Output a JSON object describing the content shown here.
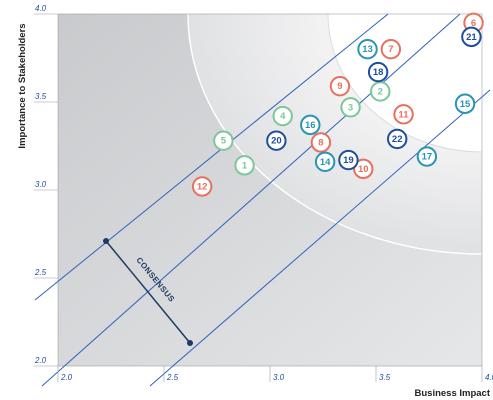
{
  "chart_data": {
    "type": "scatter",
    "title": "",
    "xlabel": "Business Impact",
    "ylabel": "Importance to Stakeholders",
    "xlim": [
      2.0,
      4.0
    ],
    "ylim": [
      2.0,
      4.0
    ],
    "x_ticks": [
      "2.0",
      "2.5",
      "3.0",
      "3.5",
      "4.0"
    ],
    "y_ticks": [
      "2.0",
      "2.5",
      "3.0",
      "3.5",
      "4.0"
    ],
    "grid": false,
    "annotation": "CONSENSUS",
    "category_colors": {
      "red": "#e8705f",
      "green": "#7cc79a",
      "teal": "#2a93b8",
      "navy": "#1e4f9b"
    },
    "points": [
      {
        "label": "1",
        "x": 2.88,
        "y": 3.14,
        "color": "green"
      },
      {
        "label": "2",
        "x": 3.52,
        "y": 3.56,
        "color": "green"
      },
      {
        "label": "3",
        "x": 3.38,
        "y": 3.47,
        "color": "green"
      },
      {
        "label": "4",
        "x": 3.06,
        "y": 3.42,
        "color": "green"
      },
      {
        "label": "5",
        "x": 2.78,
        "y": 3.28,
        "color": "green"
      },
      {
        "label": "6",
        "x": 3.96,
        "y": 3.95,
        "color": "red"
      },
      {
        "label": "7",
        "x": 3.57,
        "y": 3.8,
        "color": "red"
      },
      {
        "label": "8",
        "x": 3.24,
        "y": 3.27,
        "color": "red"
      },
      {
        "label": "9",
        "x": 3.33,
        "y": 3.59,
        "color": "red"
      },
      {
        "label": "10",
        "x": 3.44,
        "y": 3.12,
        "color": "red"
      },
      {
        "label": "11",
        "x": 3.63,
        "y": 3.43,
        "color": "red"
      },
      {
        "label": "12",
        "x": 2.68,
        "y": 3.02,
        "color": "red"
      },
      {
        "label": "13",
        "x": 3.46,
        "y": 3.8,
        "color": "teal"
      },
      {
        "label": "14",
        "x": 3.26,
        "y": 3.16,
        "color": "teal"
      },
      {
        "label": "15",
        "x": 3.92,
        "y": 3.49,
        "color": "teal"
      },
      {
        "label": "16",
        "x": 3.19,
        "y": 3.37,
        "color": "teal"
      },
      {
        "label": "17",
        "x": 3.74,
        "y": 3.19,
        "color": "teal"
      },
      {
        "label": "18",
        "x": 3.51,
        "y": 3.67,
        "color": "navy"
      },
      {
        "label": "19",
        "x": 3.37,
        "y": 3.17,
        "color": "navy"
      },
      {
        "label": "20",
        "x": 3.03,
        "y": 3.28,
        "color": "navy"
      },
      {
        "label": "21",
        "x": 3.95,
        "y": 3.87,
        "color": "navy"
      },
      {
        "label": "22",
        "x": 3.6,
        "y": 3.29,
        "color": "navy"
      }
    ]
  }
}
